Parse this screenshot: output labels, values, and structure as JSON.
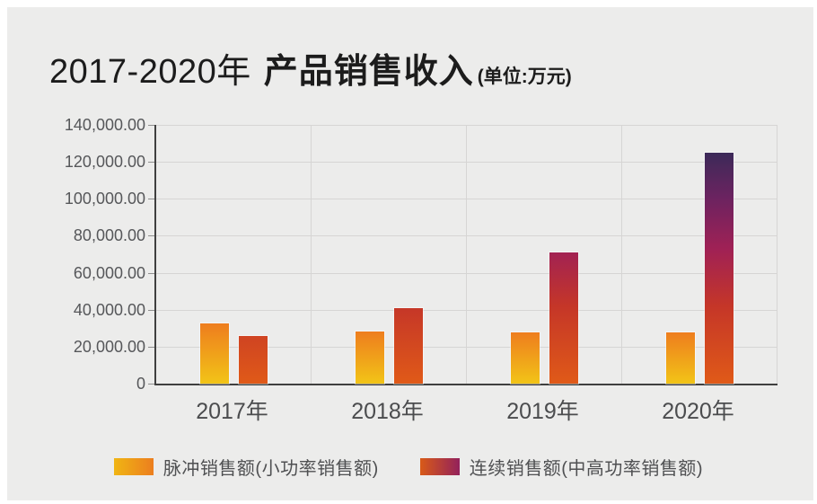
{
  "header": {
    "title_range": "2017-2020年",
    "title_main": "产品销售收入",
    "unit_label": "(单位:万元)"
  },
  "chart_data": {
    "type": "bar",
    "title": "2017-2020年 产品销售收入",
    "unit": "万元",
    "categories": [
      "2017年",
      "2018年",
      "2019年",
      "2020年"
    ],
    "series": [
      {
        "name": "脉冲销售额(小功率销售额)",
        "values": [
          32500,
          28000,
          27500,
          27500
        ]
      },
      {
        "name": "连续销售额(中高功率销售额)",
        "values": [
          26000,
          41000,
          71000,
          125000
        ]
      }
    ],
    "ylim": [
      0,
      140000
    ],
    "ytick_step": 20000,
    "ytick_labels_top_to_bottom": [
      "140,000.00",
      "120,000.00",
      "100,000.00",
      "80,000.00",
      "60,000.00",
      "40,000.00",
      "20,000.00",
      "0"
    ],
    "grid": true,
    "legend_position": "bottom",
    "colors": {
      "panel_background": "#ececeb",
      "frame": "#ffffff",
      "axis_line": "#3f3f3f",
      "gridline": "#d6d5d4",
      "pulse_gradient_top_to_bottom": [
        "#ee7d1e",
        "#f2c417"
      ],
      "continuous_gradient_bottom_to_top": [
        "#e05a18",
        "#c53628",
        "#a02155",
        "#6b2360",
        "#3a2a58",
        "#2d2b5c"
      ],
      "title_text": "#1c1c1c",
      "axis_label_text": "#56575a",
      "category_label_text": "#4b4c4e",
      "legend_text": "#4f5052"
    }
  }
}
